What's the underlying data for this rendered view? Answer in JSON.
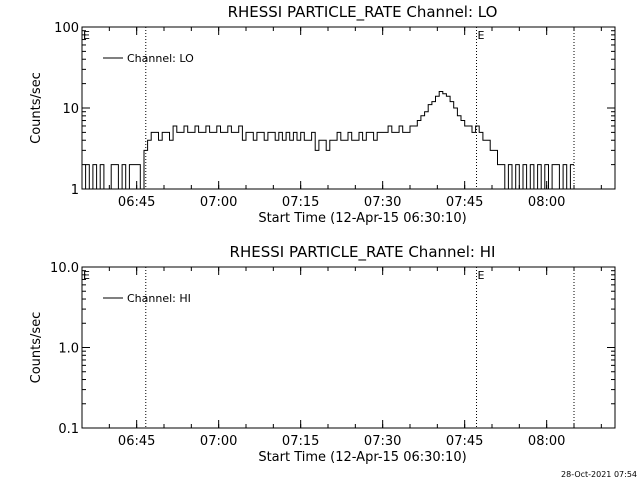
{
  "footer": {
    "timestamp": "28-Oct-2021 07:54"
  },
  "chart_data": [
    {
      "type": "line",
      "title": "RHESSI PARTICLE_RATE Channel: LO",
      "xlabel": "Start Time (12-Apr-15 06:30:10)",
      "ylabel": "Counts/sec",
      "yscale": "log",
      "ylim": [
        1,
        100
      ],
      "yticks": [
        1,
        10,
        100
      ],
      "ytick_labels": [
        "1",
        "10",
        "100"
      ],
      "xlim": [
        "06:35:00",
        "08:12:30"
      ],
      "xticks": [
        "06:45",
        "07:00",
        "07:15",
        "07:30",
        "07:45",
        "08:00"
      ],
      "event_lines": [
        "06:46:40",
        "07:47:10",
        "08:05:00"
      ],
      "event_markers": [
        {
          "label": "E",
          "time": "06:35:00"
        },
        {
          "label": "E",
          "time": "07:47:10"
        }
      ],
      "legend": {
        "position": "top-left",
        "entries": [
          "Channel: LO"
        ]
      },
      "series": [
        {
          "name": "Channel: LO",
          "x": [
            "06:35:00",
            "06:35:40",
            "06:36:20",
            "06:37:00",
            "06:37:40",
            "06:38:20",
            "06:39:00",
            "06:39:40",
            "06:40:20",
            "06:41:00",
            "06:41:40",
            "06:42:20",
            "06:43:00",
            "06:43:40",
            "06:44:20",
            "06:45:00",
            "06:45:40",
            "06:46:20",
            "06:47:00",
            "06:47:40",
            "06:48:20",
            "06:49:00",
            "06:49:40",
            "06:50:20",
            "06:51:00",
            "06:51:40",
            "06:52:20",
            "06:53:00",
            "06:53:40",
            "06:54:20",
            "06:55:00",
            "06:55:40",
            "06:56:20",
            "06:57:00",
            "06:57:40",
            "06:58:20",
            "06:59:00",
            "06:59:40",
            "07:00:20",
            "07:01:00",
            "07:01:40",
            "07:02:20",
            "07:03:00",
            "07:03:40",
            "07:04:20",
            "07:05:00",
            "07:05:40",
            "07:06:20",
            "07:07:00",
            "07:07:40",
            "07:08:20",
            "07:09:00",
            "07:09:40",
            "07:10:20",
            "07:11:00",
            "07:11:40",
            "07:12:20",
            "07:13:00",
            "07:13:40",
            "07:14:20",
            "07:15:00",
            "07:15:40",
            "07:16:20",
            "07:17:00",
            "07:17:40",
            "07:18:20",
            "07:19:00",
            "07:19:40",
            "07:20:20",
            "07:21:00",
            "07:21:40",
            "07:22:20",
            "07:23:00",
            "07:23:40",
            "07:24:20",
            "07:25:00",
            "07:25:40",
            "07:26:20",
            "07:27:00",
            "07:27:40",
            "07:28:20",
            "07:29:00",
            "07:29:40",
            "07:30:20",
            "07:31:00",
            "07:31:40",
            "07:32:20",
            "07:33:00",
            "07:33:40",
            "07:34:20",
            "07:35:00",
            "07:35:40",
            "07:36:20",
            "07:37:00",
            "07:37:40",
            "07:38:20",
            "07:39:00",
            "07:39:40",
            "07:40:20",
            "07:41:00",
            "07:41:40",
            "07:42:20",
            "07:43:00",
            "07:43:40",
            "07:44:20",
            "07:45:00",
            "07:45:40",
            "07:46:20",
            "07:47:00",
            "07:47:40",
            "07:48:20",
            "07:49:00",
            "07:49:40",
            "07:50:20",
            "07:51:00",
            "07:51:40",
            "07:52:20",
            "07:53:00",
            "07:53:40",
            "07:54:20",
            "07:55:00",
            "07:55:40",
            "07:56:20",
            "07:57:00",
            "07:57:40",
            "07:58:20",
            "07:59:00",
            "07:59:40",
            "08:00:20",
            "08:01:00",
            "08:01:40",
            "08:02:20",
            "08:03:00",
            "08:03:40",
            "08:04:20",
            "08:05:00"
          ],
          "y": [
            1,
            2,
            1,
            2,
            1,
            2,
            1,
            1,
            2,
            2,
            1,
            2,
            1,
            2,
            2,
            2,
            1,
            3,
            4,
            5,
            5,
            4,
            5,
            5,
            4,
            6,
            5,
            5,
            6,
            5,
            5,
            6,
            5,
            5,
            6,
            5,
            5,
            6,
            5,
            5,
            6,
            5,
            5,
            6,
            4,
            5,
            5,
            4,
            5,
            5,
            4,
            5,
            5,
            4,
            5,
            4,
            5,
            4,
            5,
            4,
            5,
            4,
            4,
            5,
            3,
            4,
            4,
            3,
            4,
            4,
            5,
            4,
            4,
            5,
            4,
            4,
            5,
            4,
            5,
            5,
            4,
            5,
            5,
            5,
            6,
            5,
            5,
            6,
            5,
            5,
            6,
            6,
            7,
            8,
            9,
            11,
            12,
            14,
            16,
            15,
            14,
            12,
            10,
            8,
            7,
            6,
            6,
            5,
            6,
            5,
            4,
            4,
            3,
            3,
            2,
            2,
            1,
            2,
            1,
            2,
            1,
            2,
            1,
            2,
            1,
            2,
            1,
            2,
            1,
            2,
            2,
            1,
            2,
            1,
            2,
            2
          ]
        }
      ]
    },
    {
      "type": "line",
      "title": "RHESSI PARTICLE_RATE Channel: HI",
      "xlabel": "Start Time (12-Apr-15 06:30:10)",
      "ylabel": "Counts/sec",
      "yscale": "log",
      "ylim": [
        0.1,
        10
      ],
      "yticks": [
        0.1,
        1,
        10
      ],
      "ytick_labels": [
        "0.1",
        "1.0",
        "10.0"
      ],
      "xlim": [
        "06:35:00",
        "08:12:30"
      ],
      "xticks": [
        "06:45",
        "07:00",
        "07:15",
        "07:30",
        "07:45",
        "08:00"
      ],
      "event_lines": [
        "06:46:40",
        "07:47:10",
        "08:05:00"
      ],
      "event_markers": [
        {
          "label": "E",
          "time": "06:35:00"
        },
        {
          "label": "E",
          "time": "07:47:10"
        }
      ],
      "legend": {
        "position": "top-left",
        "entries": [
          "Channel: HI"
        ]
      },
      "series": [
        {
          "name": "Channel: HI",
          "x": [],
          "y": []
        }
      ]
    }
  ]
}
